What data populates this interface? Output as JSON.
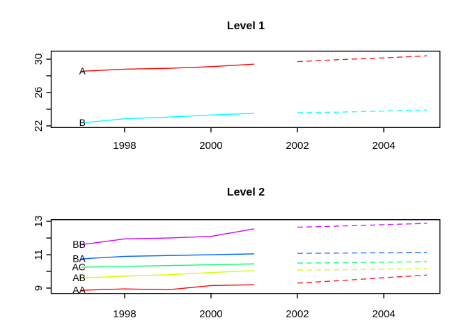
{
  "figure": {
    "background": "#ffffff",
    "text_color": "#000000",
    "panel_count": 2
  },
  "chart_data": [
    {
      "type": "line",
      "title": "Level 1",
      "xlabel": "",
      "ylabel": "",
      "x_solid": [
        1997,
        1998,
        1999,
        2000,
        2001
      ],
      "x_dashed": [
        2002,
        2003,
        2004,
        2005
      ],
      "xlim": [
        1996.3,
        2005.3
      ],
      "ylim": [
        21.8,
        30.96
      ],
      "grid": "off",
      "legend": "inline-labels-left",
      "xticks": [
        "1998",
        "2000",
        "2002",
        "2004"
      ],
      "xtick_values": [
        1998,
        2000,
        2002,
        2004
      ],
      "yticks": [
        {
          "value": 22,
          "label": "22"
        },
        {
          "value": 24,
          "label": ""
        },
        {
          "value": 26,
          "label": "26"
        },
        {
          "value": 28,
          "label": ""
        },
        {
          "value": 30,
          "label": "30"
        }
      ],
      "series": [
        {
          "label": "A",
          "color": "#FF0000",
          "solid": [
            28.55,
            28.8,
            28.9,
            29.1,
            29.4
          ],
          "dashed": [
            29.7,
            29.95,
            30.15,
            30.4
          ]
        },
        {
          "label": "B",
          "color": "#00FFFF",
          "solid": [
            22.35,
            22.85,
            23.05,
            23.3,
            23.5
          ],
          "dashed": [
            23.58,
            23.65,
            23.78,
            23.9
          ]
        }
      ]
    },
    {
      "type": "line",
      "title": "Level 2",
      "xlabel": "",
      "ylabel": "",
      "x_solid": [
        1997,
        1998,
        1999,
        2000,
        2001
      ],
      "x_dashed": [
        2002,
        2003,
        2004,
        2005
      ],
      "xlim": [
        1996.3,
        2005.3
      ],
      "ylim": [
        8.68,
        13.1
      ],
      "grid": "off",
      "legend": "inline-labels-left",
      "xticks": [
        "1998",
        "2000",
        "2002",
        "2004"
      ],
      "xtick_values": [
        1998,
        2000,
        2002,
        2004
      ],
      "yticks": [
        {
          "value": 9,
          "label": "9"
        },
        {
          "value": 10,
          "label": ""
        },
        {
          "value": 11,
          "label": "11"
        },
        {
          "value": 12,
          "label": ""
        },
        {
          "value": 13,
          "label": "13"
        }
      ],
      "series": [
        {
          "label": "AA",
          "color": "#FF0000",
          "solid": [
            8.87,
            8.95,
            8.9,
            9.15,
            9.2
          ],
          "dashed": [
            9.3,
            9.45,
            9.62,
            9.78
          ]
        },
        {
          "label": "AB",
          "color": "#CCFF00",
          "solid": [
            9.6,
            9.72,
            9.8,
            9.93,
            10.05
          ],
          "dashed": [
            10.08,
            10.1,
            10.13,
            10.17
          ]
        },
        {
          "label": "AC",
          "color": "#00FF66",
          "solid": [
            10.25,
            10.3,
            10.35,
            10.4,
            10.45
          ],
          "dashed": [
            10.5,
            10.52,
            10.55,
            10.58
          ]
        },
        {
          "label": "BA",
          "color": "#0066FF",
          "solid": [
            10.75,
            10.9,
            10.95,
            11.0,
            11.05
          ],
          "dashed": [
            11.08,
            11.1,
            11.12,
            11.14
          ]
        },
        {
          "label": "BB",
          "color": "#CC00FF",
          "solid": [
            11.6,
            11.95,
            12.0,
            12.1,
            12.55
          ],
          "dashed": [
            12.65,
            12.72,
            12.8,
            12.88
          ]
        }
      ]
    }
  ]
}
